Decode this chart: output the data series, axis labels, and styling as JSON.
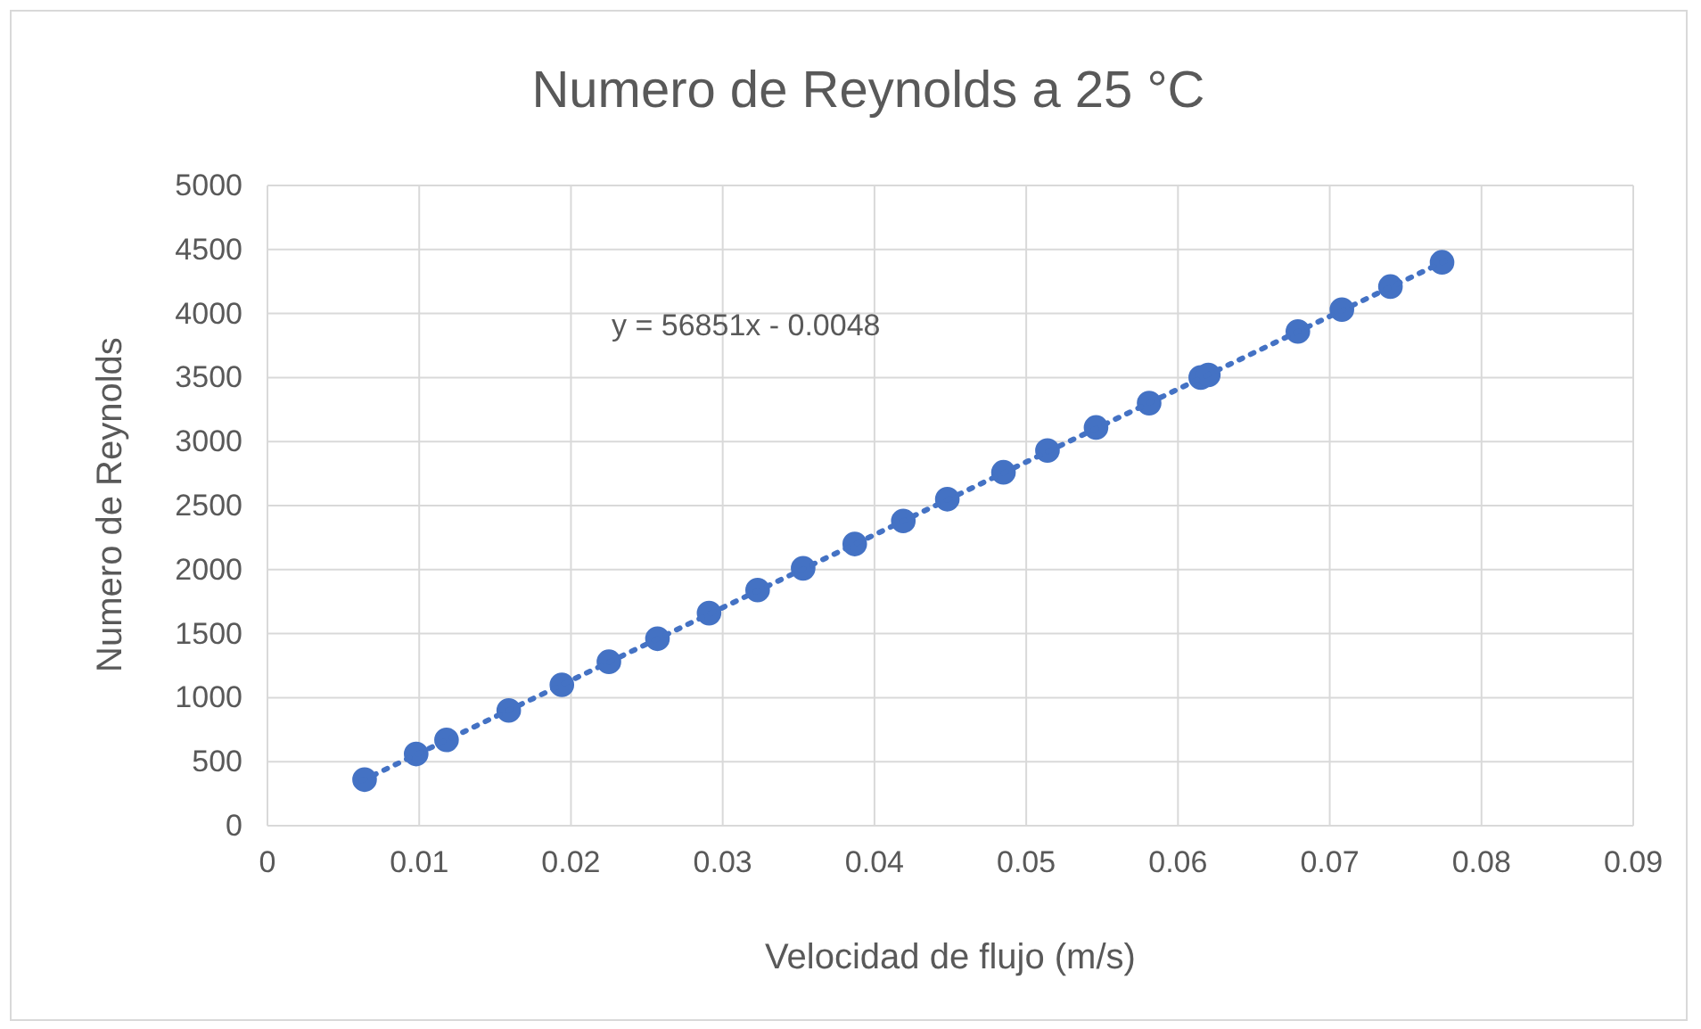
{
  "chart_data": {
    "type": "scatter",
    "title": "Numero de Reynolds a 25 °C",
    "xlabel": "Velocidad de flujo (m/s)",
    "ylabel": "Numero de Reynolds",
    "annotations": [
      "y = 56851x - 0.0048"
    ],
    "xlim": [
      0,
      0.09
    ],
    "xticks": [
      0,
      0.01,
      0.02,
      0.03,
      0.04,
      0.05,
      0.06,
      0.07,
      0.08,
      0.09
    ],
    "ylim": [
      0,
      5000
    ],
    "yticks": [
      0,
      500,
      1000,
      1500,
      2000,
      2500,
      3000,
      3500,
      4000,
      4500,
      5000
    ],
    "grid": true,
    "series": [
      {
        "color": "#4472c4",
        "marker": "circle",
        "x": [
          0.0064,
          0.0098,
          0.0118,
          0.0159,
          0.0194,
          0.0225,
          0.0257,
          0.0291,
          0.0323,
          0.0353,
          0.0387,
          0.0419,
          0.0448,
          0.0485,
          0.0514,
          0.0546,
          0.0581,
          0.0615,
          0.062,
          0.0679,
          0.0708,
          0.074,
          0.0774
        ],
        "values": [
          360,
          560,
          670,
          900,
          1100,
          1280,
          1460,
          1660,
          1840,
          2010,
          2200,
          2380,
          2550,
          2760,
          2930,
          3110,
          3300,
          3500,
          3520,
          3860,
          4030,
          4210,
          4400
        ]
      },
      {
        "type": "line",
        "color": "#4472c4",
        "line_style": "dotted",
        "marker": "none",
        "x": [
          0.0062,
          0.0776
        ],
        "values": [
          350,
          4410
        ]
      }
    ]
  }
}
